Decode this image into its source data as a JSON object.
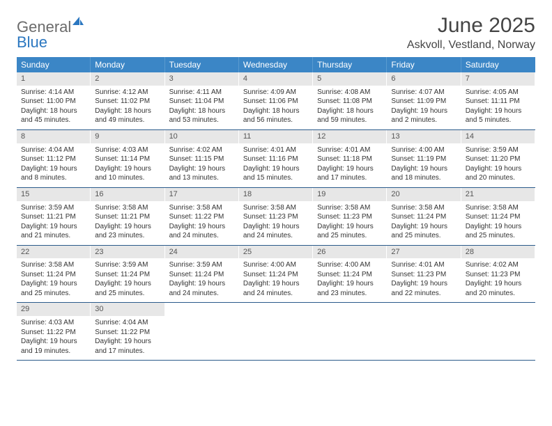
{
  "brand": {
    "word1": "General",
    "word2": "Blue",
    "icon_color": "#2b77c0"
  },
  "title": "June 2025",
  "location": "Askvoll, Vestland, Norway",
  "colors": {
    "header_bg": "#3b86c6",
    "header_text": "#ffffff",
    "daynum_bg": "#e7e7e7",
    "row_border": "#2a5a8a",
    "body_text": "#333333",
    "title_text": "#444444"
  },
  "day_names": [
    "Sunday",
    "Monday",
    "Tuesday",
    "Wednesday",
    "Thursday",
    "Friday",
    "Saturday"
  ],
  "labels": {
    "sunrise": "Sunrise:",
    "sunset": "Sunset:",
    "daylight": "Daylight:"
  },
  "weeks": [
    [
      {
        "n": "1",
        "sunrise": "4:14 AM",
        "sunset": "11:00 PM",
        "daylight_a": "18 hours",
        "daylight_b": "and 45 minutes."
      },
      {
        "n": "2",
        "sunrise": "4:12 AM",
        "sunset": "11:02 PM",
        "daylight_a": "18 hours",
        "daylight_b": "and 49 minutes."
      },
      {
        "n": "3",
        "sunrise": "4:11 AM",
        "sunset": "11:04 PM",
        "daylight_a": "18 hours",
        "daylight_b": "and 53 minutes."
      },
      {
        "n": "4",
        "sunrise": "4:09 AM",
        "sunset": "11:06 PM",
        "daylight_a": "18 hours",
        "daylight_b": "and 56 minutes."
      },
      {
        "n": "5",
        "sunrise": "4:08 AM",
        "sunset": "11:08 PM",
        "daylight_a": "18 hours",
        "daylight_b": "and 59 minutes."
      },
      {
        "n": "6",
        "sunrise": "4:07 AM",
        "sunset": "11:09 PM",
        "daylight_a": "19 hours",
        "daylight_b": "and 2 minutes."
      },
      {
        "n": "7",
        "sunrise": "4:05 AM",
        "sunset": "11:11 PM",
        "daylight_a": "19 hours",
        "daylight_b": "and 5 minutes."
      }
    ],
    [
      {
        "n": "8",
        "sunrise": "4:04 AM",
        "sunset": "11:12 PM",
        "daylight_a": "19 hours",
        "daylight_b": "and 8 minutes."
      },
      {
        "n": "9",
        "sunrise": "4:03 AM",
        "sunset": "11:14 PM",
        "daylight_a": "19 hours",
        "daylight_b": "and 10 minutes."
      },
      {
        "n": "10",
        "sunrise": "4:02 AM",
        "sunset": "11:15 PM",
        "daylight_a": "19 hours",
        "daylight_b": "and 13 minutes."
      },
      {
        "n": "11",
        "sunrise": "4:01 AM",
        "sunset": "11:16 PM",
        "daylight_a": "19 hours",
        "daylight_b": "and 15 minutes."
      },
      {
        "n": "12",
        "sunrise": "4:01 AM",
        "sunset": "11:18 PM",
        "daylight_a": "19 hours",
        "daylight_b": "and 17 minutes."
      },
      {
        "n": "13",
        "sunrise": "4:00 AM",
        "sunset": "11:19 PM",
        "daylight_a": "19 hours",
        "daylight_b": "and 18 minutes."
      },
      {
        "n": "14",
        "sunrise": "3:59 AM",
        "sunset": "11:20 PM",
        "daylight_a": "19 hours",
        "daylight_b": "and 20 minutes."
      }
    ],
    [
      {
        "n": "15",
        "sunrise": "3:59 AM",
        "sunset": "11:21 PM",
        "daylight_a": "19 hours",
        "daylight_b": "and 21 minutes."
      },
      {
        "n": "16",
        "sunrise": "3:58 AM",
        "sunset": "11:21 PM",
        "daylight_a": "19 hours",
        "daylight_b": "and 23 minutes."
      },
      {
        "n": "17",
        "sunrise": "3:58 AM",
        "sunset": "11:22 PM",
        "daylight_a": "19 hours",
        "daylight_b": "and 24 minutes."
      },
      {
        "n": "18",
        "sunrise": "3:58 AM",
        "sunset": "11:23 PM",
        "daylight_a": "19 hours",
        "daylight_b": "and 24 minutes."
      },
      {
        "n": "19",
        "sunrise": "3:58 AM",
        "sunset": "11:23 PM",
        "daylight_a": "19 hours",
        "daylight_b": "and 25 minutes."
      },
      {
        "n": "20",
        "sunrise": "3:58 AM",
        "sunset": "11:24 PM",
        "daylight_a": "19 hours",
        "daylight_b": "and 25 minutes."
      },
      {
        "n": "21",
        "sunrise": "3:58 AM",
        "sunset": "11:24 PM",
        "daylight_a": "19 hours",
        "daylight_b": "and 25 minutes."
      }
    ],
    [
      {
        "n": "22",
        "sunrise": "3:58 AM",
        "sunset": "11:24 PM",
        "daylight_a": "19 hours",
        "daylight_b": "and 25 minutes."
      },
      {
        "n": "23",
        "sunrise": "3:59 AM",
        "sunset": "11:24 PM",
        "daylight_a": "19 hours",
        "daylight_b": "and 25 minutes."
      },
      {
        "n": "24",
        "sunrise": "3:59 AM",
        "sunset": "11:24 PM",
        "daylight_a": "19 hours",
        "daylight_b": "and 24 minutes."
      },
      {
        "n": "25",
        "sunrise": "4:00 AM",
        "sunset": "11:24 PM",
        "daylight_a": "19 hours",
        "daylight_b": "and 24 minutes."
      },
      {
        "n": "26",
        "sunrise": "4:00 AM",
        "sunset": "11:24 PM",
        "daylight_a": "19 hours",
        "daylight_b": "and 23 minutes."
      },
      {
        "n": "27",
        "sunrise": "4:01 AM",
        "sunset": "11:23 PM",
        "daylight_a": "19 hours",
        "daylight_b": "and 22 minutes."
      },
      {
        "n": "28",
        "sunrise": "4:02 AM",
        "sunset": "11:23 PM",
        "daylight_a": "19 hours",
        "daylight_b": "and 20 minutes."
      }
    ],
    [
      {
        "n": "29",
        "sunrise": "4:03 AM",
        "sunset": "11:22 PM",
        "daylight_a": "19 hours",
        "daylight_b": "and 19 minutes."
      },
      {
        "n": "30",
        "sunrise": "4:04 AM",
        "sunset": "11:22 PM",
        "daylight_a": "19 hours",
        "daylight_b": "and 17 minutes."
      },
      null,
      null,
      null,
      null,
      null
    ]
  ]
}
